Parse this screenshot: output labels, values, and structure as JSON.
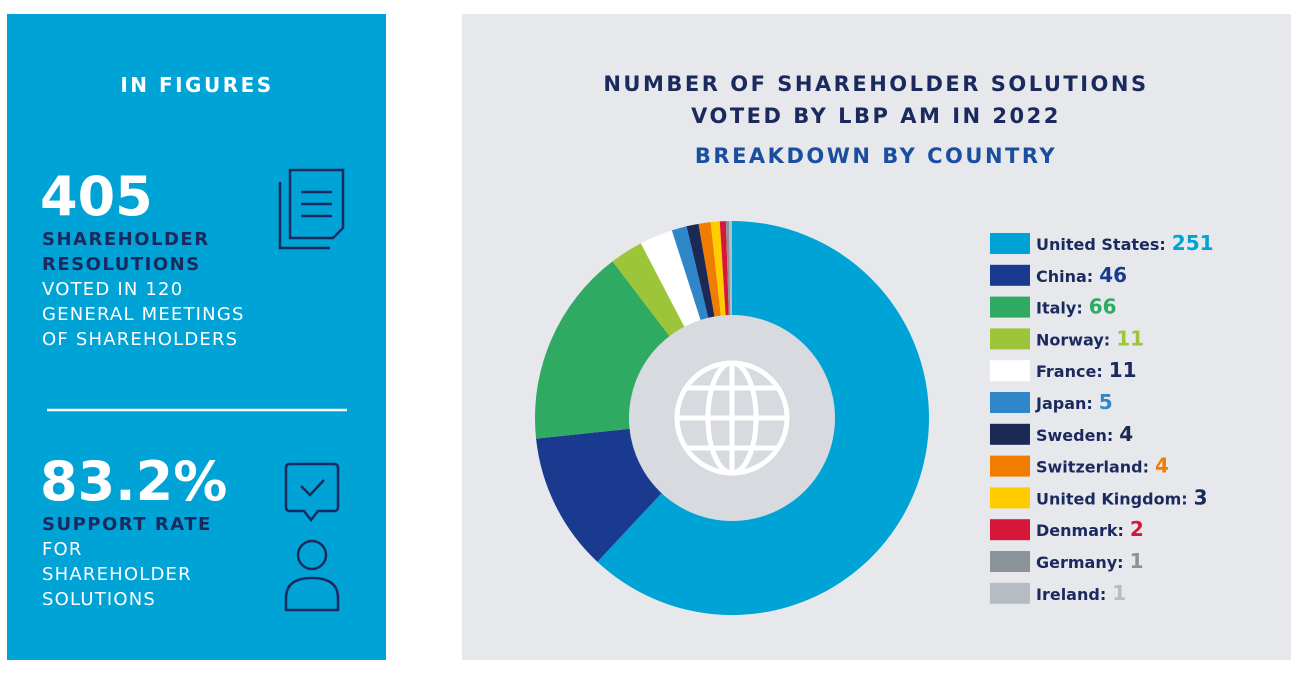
{
  "figures": {
    "heading": "IN FIGURES",
    "items": [
      {
        "value": "405",
        "label": [
          "SHAREHOLDER",
          "RESOLUTIONS"
        ],
        "description": [
          "VOTED IN 120",
          "GENERAL MEETINGS",
          "OF SHAREHOLDERS"
        ]
      },
      {
        "value": "83.2%",
        "label": [
          "SUPPORT RATE"
        ],
        "description": [
          "FOR",
          "SHAREHOLDER",
          "SOLUTIONS"
        ]
      }
    ]
  },
  "chart_data": {
    "type": "pie",
    "title": [
      "NUMBER OF SHAREHOLDER SOLUTIONS",
      "VOTED BY LBP AM IN 2022"
    ],
    "subtitle": "BREAKDOWN BY COUNTRY",
    "categories": [
      "United States:",
      "China:",
      "Italy:",
      "Norway:",
      "France:",
      "Japan:",
      "Sweden:",
      "Switzerland:",
      "United Kingdom:",
      "Denmark:",
      "Germany:",
      "Ireland:"
    ],
    "values": [
      251,
      46,
      66,
      11,
      11,
      5,
      4,
      4,
      3,
      2,
      1,
      1
    ],
    "colors": [
      "#00a3d6",
      "#1a3a8f",
      "#2eaa62",
      "#9cc53a",
      "#ffffff",
      "#2f86c8",
      "#1b2a55",
      "#f07d00",
      "#ffcc00",
      "#d6173a",
      "#8a9399",
      "#b5bcc3"
    ],
    "value_label_colors": [
      "#00a3d6",
      "#1a3a8f",
      "#2eaa62",
      "#9cc53a",
      "#1b2a5e",
      "#2f86c8",
      "#1b2a55",
      "#f07d00",
      "#1b2a5e",
      "#d6173a",
      "#8a9399",
      "#b5bcc3"
    ],
    "legend": "right"
  }
}
